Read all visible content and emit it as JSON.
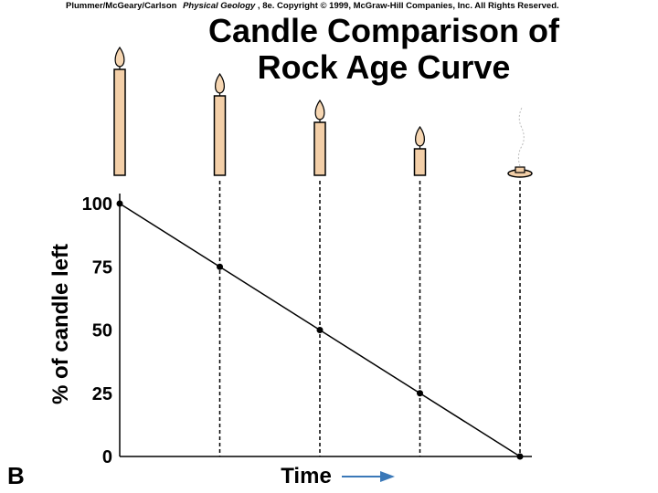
{
  "credit": {
    "authors": "Plummer/McGeary/Carlson",
    "book": "Physical Geology",
    "rest": ", 8e.  Copyright © 1999, McGraw-Hill Companies, Inc. All Rights Reserved."
  },
  "panel_label": "B",
  "colors": {
    "candle_fill": "#f3cfa8",
    "candle_stroke": "#000000",
    "flame_outer": "#f6d6b2",
    "axis_arrow": "#3a78b8"
  },
  "chart_data": {
    "type": "line",
    "title_lines": [
      "Candle Comparison of",
      "Rock Age Curve"
    ],
    "xlabel": "Time",
    "ylabel": "% of candle left",
    "y_ticks": [
      100,
      75,
      50,
      25,
      0
    ],
    "ylim": [
      0,
      100
    ],
    "x": [
      0,
      1,
      2,
      3,
      4
    ],
    "xlim": [
      0,
      4
    ],
    "series": [
      {
        "values": [
          100,
          75,
          50,
          25,
          0
        ]
      }
    ],
    "candle_remaining": [
      100,
      75,
      50,
      25,
      0
    ],
    "grid": "dashed vertical lines at each data point"
  }
}
